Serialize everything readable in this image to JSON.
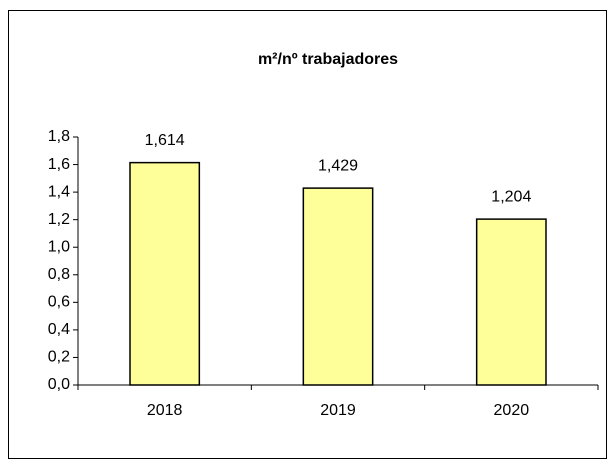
{
  "chart_data": {
    "type": "bar",
    "title": "m²/nº trabajadores",
    "categories": [
      "2018",
      "2019",
      "2020"
    ],
    "values": [
      1.614,
      1.429,
      1.204
    ],
    "value_labels": [
      "1,614",
      "1,429",
      "1,204"
    ],
    "color": "#ffff99",
    "ylim": [
      0,
      1.8
    ],
    "yticks": [
      {
        "value": 0,
        "label": "0,0"
      },
      {
        "value": 0.2,
        "label": "0,2"
      },
      {
        "value": 0.4,
        "label": "0,4"
      },
      {
        "value": 0.6,
        "label": "0,6"
      },
      {
        "value": 0.8,
        "label": "0,8"
      },
      {
        "value": 1.0,
        "label": "1,0"
      },
      {
        "value": 1.2,
        "label": "1,2"
      },
      {
        "value": 1.4,
        "label": "1,4"
      },
      {
        "value": 1.6,
        "label": "1,6"
      },
      {
        "value": 1.8,
        "label": "1,8"
      }
    ],
    "grid": false
  }
}
